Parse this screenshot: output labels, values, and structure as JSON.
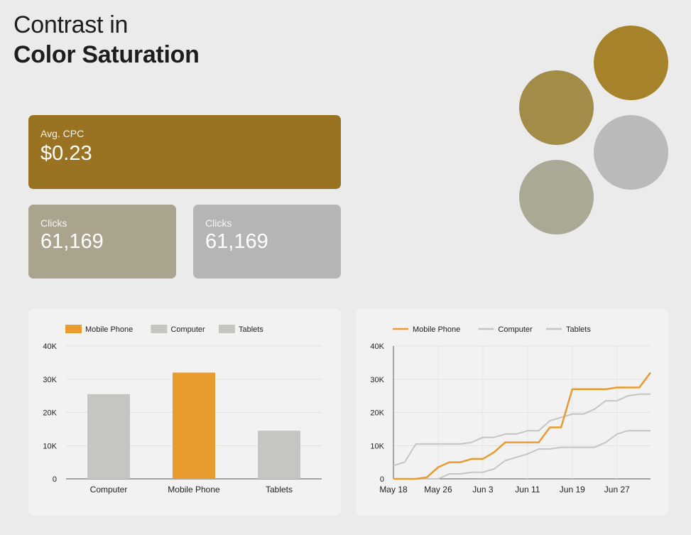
{
  "title": {
    "line1": "Contrast in",
    "line2": "Color Saturation"
  },
  "cards": {
    "cpc": {
      "label": "Avg. CPC",
      "value": "$0.23",
      "color": "#9a7322"
    },
    "clicks1": {
      "label": "Clicks",
      "value": "61,169",
      "color": "#aaa48e"
    },
    "clicks2": {
      "label": "Clicks",
      "value": "61,169",
      "color": "#b5b5b5"
    }
  },
  "swatches": [
    "#a38c48",
    "#a6832b",
    "#aba996",
    "#bababa"
  ],
  "chart_data": [
    {
      "type": "bar",
      "legend": [
        {
          "name": "Mobile Phone",
          "color": "#e89b2f"
        },
        {
          "name": "Computer",
          "color": "#c6c5c1"
        },
        {
          "name": "Tablets",
          "color": "#c6c5c1"
        }
      ],
      "categories": [
        "Computer",
        "Mobile Phone",
        "Tablets"
      ],
      "values": [
        25500,
        32000,
        14500
      ],
      "colors": [
        "#c6c5c1",
        "#e89b2f",
        "#c6c5c1"
      ],
      "yticks": [
        "0",
        "10K",
        "20K",
        "30K",
        "40K"
      ],
      "ylim": [
        0,
        40000
      ],
      "grid": true,
      "legend_position": "top-left"
    },
    {
      "type": "line",
      "legend": [
        {
          "name": "Mobile Phone",
          "color": "#e89b2f"
        },
        {
          "name": "Computer",
          "color": "#c6c5c1"
        },
        {
          "name": "Tablets",
          "color": "#c6c5c1"
        }
      ],
      "xticks": [
        "May 18",
        "May 26",
        "Jun 3",
        "Jun 11",
        "Jun 19",
        "Jun 27"
      ],
      "yticks": [
        "0",
        "10K",
        "20K",
        "30K",
        "40K"
      ],
      "xlim": [
        "May 18",
        "Jul 3"
      ],
      "ylim": [
        0,
        40000
      ],
      "grid": true,
      "legend_position": "top-left",
      "series": [
        {
          "name": "Mobile Phone",
          "color": "#e89b2f",
          "x": [
            "May 18",
            "May 20",
            "May 22",
            "May 24",
            "May 26",
            "May 28",
            "May 30",
            "Jun 1",
            "Jun 3",
            "Jun 5",
            "Jun 7",
            "Jun 9",
            "Jun 11",
            "Jun 13",
            "Jun 15",
            "Jun 17",
            "Jun 19",
            "Jun 21",
            "Jun 23",
            "Jun 25",
            "Jun 27",
            "Jun 29",
            "Jul 1",
            "Jul 3"
          ],
          "y": [
            0,
            0,
            0,
            500,
            3500,
            5000,
            5000,
            6000,
            6000,
            8000,
            11000,
            11000,
            11000,
            11000,
            15500,
            15500,
            27000,
            27000,
            27000,
            27000,
            27500,
            27500,
            27500,
            32000
          ]
        },
        {
          "name": "Computer",
          "color": "#c6c5c1",
          "x": [
            "May 18",
            "May 20",
            "May 22",
            "May 24",
            "May 26",
            "May 28",
            "May 30",
            "Jun 1",
            "Jun 3",
            "Jun 5",
            "Jun 7",
            "Jun 9",
            "Jun 11",
            "Jun 13",
            "Jun 15",
            "Jun 17",
            "Jun 19",
            "Jun 21",
            "Jun 23",
            "Jun 25",
            "Jun 27",
            "Jun 29",
            "Jul 1",
            "Jul 3"
          ],
          "y": [
            4000,
            5000,
            10500,
            10500,
            10500,
            10500,
            10500,
            11000,
            12500,
            12500,
            13500,
            13500,
            14500,
            14500,
            17500,
            18500,
            19500,
            19500,
            21000,
            23500,
            23500,
            25000,
            25500,
            25500
          ]
        },
        {
          "name": "Tablets",
          "color": "#c6c5c1",
          "x": [
            "May 18",
            "May 20",
            "May 22",
            "May 24",
            "May 26",
            "May 28",
            "May 30",
            "Jun 1",
            "Jun 3",
            "Jun 5",
            "Jun 7",
            "Jun 9",
            "Jun 11",
            "Jun 13",
            "Jun 15",
            "Jun 17",
            "Jun 19",
            "Jun 21",
            "Jun 23",
            "Jun 25",
            "Jun 27",
            "Jun 29",
            "Jul 1",
            "Jul 3"
          ],
          "y": [
            0,
            0,
            0,
            0,
            0,
            1500,
            1500,
            2000,
            2000,
            3000,
            5500,
            6500,
            7500,
            9000,
            9000,
            9500,
            9500,
            9500,
            9500,
            11000,
            13500,
            14500,
            14500,
            14500
          ]
        }
      ]
    }
  ]
}
